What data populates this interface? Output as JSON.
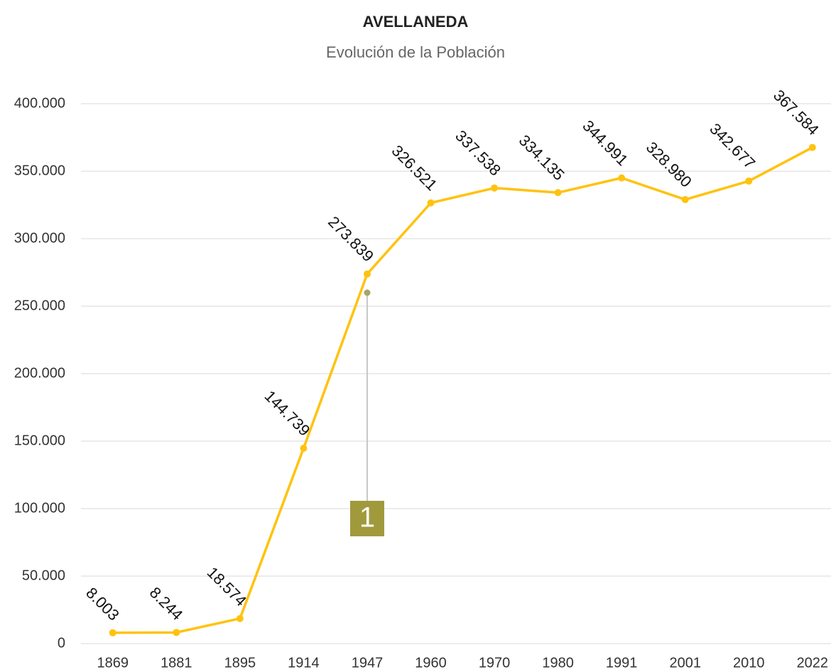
{
  "chart_data": {
    "type": "line",
    "title": "AVELLANEDA",
    "subtitle": "Evolución de la Población",
    "categories": [
      "1869",
      "1881",
      "1895",
      "1914",
      "1947",
      "1960",
      "1970",
      "1980",
      "1991",
      "2001",
      "2010",
      "2022"
    ],
    "series": [
      {
        "name": "Población",
        "color": "#ffc20e",
        "values": [
          8003,
          8244,
          18574,
          144739,
          273839,
          326521,
          337538,
          334135,
          344991,
          328980,
          342677,
          367584
        ],
        "value_labels": [
          "8.003",
          "8.244",
          "18.574",
          "144.739",
          "273.839",
          "326.521",
          "337.538",
          "334.135",
          "344.991",
          "328.980",
          "342.677",
          "367.584"
        ]
      }
    ],
    "ylim": [
      0,
      400000
    ],
    "yticks": [
      0,
      {
        "value": 50000,
        "label": "50.000"
      },
      {
        "value": 100000,
        "label": "100.000"
      },
      {
        "value": 150000,
        "label": "150.000"
      },
      {
        "value": 200000,
        "label": "200.000"
      },
      {
        "value": 250000,
        "label": "250.000"
      },
      {
        "value": 300000,
        "label": "300.000"
      },
      {
        "value": 350000,
        "label": "350.000"
      },
      {
        "value": 400000,
        "label": "400.000"
      }
    ],
    "grid": true,
    "annotations": [
      {
        "text": "1",
        "x": "1947",
        "y": 260000,
        "color": "#a09a3c"
      }
    ]
  }
}
